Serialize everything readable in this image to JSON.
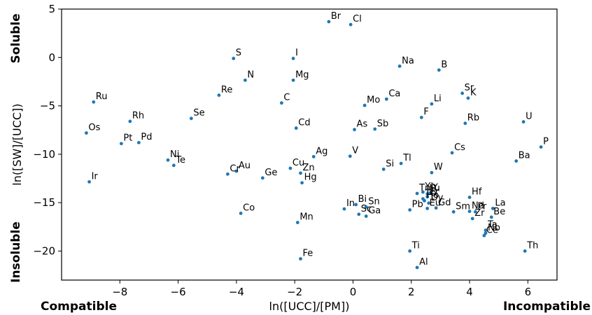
{
  "chart_data": {
    "type": "scatter",
    "xlabel": "ln([UCC]/[PM])",
    "ylabel": "ln([SW]/[UCC])",
    "xlim": [
      -10.0,
      7.0
    ],
    "ylim": [
      -23.0,
      5.0
    ],
    "xticks": [
      -8,
      -6,
      -4,
      -2,
      0,
      2,
      4,
      6
    ],
    "yticks": [
      5,
      0,
      -5,
      -10,
      -15,
      -20
    ],
    "grid": false,
    "marker_color": "#1f77b4",
    "annotations": {
      "soluble": "Soluble",
      "insoluble": "Insoluble",
      "compatible": "Compatible",
      "incompatible": "Incompatible"
    },
    "points": [
      {
        "label": "Br",
        "x": -0.83,
        "y": 3.7
      },
      {
        "label": "Cl",
        "x": -0.08,
        "y": 3.4
      },
      {
        "label": "S",
        "x": -4.1,
        "y": -0.1
      },
      {
        "label": "I",
        "x": -2.05,
        "y": -0.1
      },
      {
        "label": "Na",
        "x": 1.6,
        "y": -0.9
      },
      {
        "label": "B",
        "x": 2.95,
        "y": -1.3
      },
      {
        "label": "N",
        "x": -3.7,
        "y": -2.35
      },
      {
        "label": "Mg",
        "x": -2.05,
        "y": -2.35
      },
      {
        "label": "Re",
        "x": -4.6,
        "y": -3.9
      },
      {
        "label": "Sr",
        "x": 3.75,
        "y": -3.7
      },
      {
        "label": "K",
        "x": 3.95,
        "y": -4.2
      },
      {
        "label": "Ru",
        "x": -8.9,
        "y": -4.6
      },
      {
        "label": "C",
        "x": -2.45,
        "y": -4.7
      },
      {
        "label": "Ca",
        "x": 1.15,
        "y": -4.3
      },
      {
        "label": "Mo",
        "x": 0.4,
        "y": -4.95
      },
      {
        "label": "Li",
        "x": 2.7,
        "y": -4.8
      },
      {
        "label": "Se",
        "x": -5.55,
        "y": -6.3
      },
      {
        "label": "F",
        "x": 2.35,
        "y": -6.2
      },
      {
        "label": "Rh",
        "x": -7.65,
        "y": -6.6
      },
      {
        "label": "Rb",
        "x": 3.85,
        "y": -6.8
      },
      {
        "label": "U",
        "x": 5.85,
        "y": -6.65
      },
      {
        "label": "Cd",
        "x": -1.95,
        "y": -7.3
      },
      {
        "label": "As",
        "x": 0.05,
        "y": -7.45
      },
      {
        "label": "Sb",
        "x": 0.75,
        "y": -7.4
      },
      {
        "label": "Os",
        "x": -9.15,
        "y": -7.8
      },
      {
        "label": "Pt",
        "x": -7.95,
        "y": -8.9
      },
      {
        "label": "Pd",
        "x": -7.35,
        "y": -8.8
      },
      {
        "label": "P",
        "x": 6.45,
        "y": -9.25
      },
      {
        "label": "Cs",
        "x": 3.4,
        "y": -9.85
      },
      {
        "label": "Ag",
        "x": -1.35,
        "y": -10.25
      },
      {
        "label": "V",
        "x": -0.1,
        "y": -10.2
      },
      {
        "label": "Ni",
        "x": -6.35,
        "y": -10.6
      },
      {
        "label": "Te",
        "x": -6.15,
        "y": -11.15
      },
      {
        "label": "Ba",
        "x": 5.6,
        "y": -10.7
      },
      {
        "label": "Tl",
        "x": 1.65,
        "y": -10.95
      },
      {
        "label": "Cu",
        "x": -2.15,
        "y": -11.45
      },
      {
        "label": "Au",
        "x": -4.0,
        "y": -11.75
      },
      {
        "label": "Si",
        "x": 1.05,
        "y": -11.55
      },
      {
        "label": "Zn",
        "x": -1.8,
        "y": -11.95
      },
      {
        "label": "W",
        "x": 2.7,
        "y": -11.9
      },
      {
        "label": "Cr",
        "x": -4.3,
        "y": -12.05
      },
      {
        "label": "Ge",
        "x": -3.1,
        "y": -12.45
      },
      {
        "label": "Ir",
        "x": -9.05,
        "y": -12.85
      },
      {
        "label": "Hg",
        "x": -1.75,
        "y": -12.95
      },
      {
        "label": "Yb",
        "x": 2.4,
        "y": -13.9
      },
      {
        "label": "Lu",
        "x": 2.55,
        "y": -14.1
      },
      {
        "label": "Y",
        "x": 2.65,
        "y": -14.0
      },
      {
        "label": "Tm",
        "x": 2.2,
        "y": -14.05
      },
      {
        "label": "Er",
        "x": 2.55,
        "y": -14.4
      },
      {
        "label": "Tb",
        "x": 2.4,
        "y": -14.6
      },
      {
        "label": "Hf",
        "x": 4.0,
        "y": -14.45
      },
      {
        "label": "Ho",
        "x": 2.45,
        "y": -14.8
      },
      {
        "label": "Dy",
        "x": 2.6,
        "y": -15.05
      },
      {
        "label": "Gd",
        "x": 2.85,
        "y": -15.55
      },
      {
        "label": "In",
        "x": -0.3,
        "y": -15.65
      },
      {
        "label": "Bi",
        "x": 0.1,
        "y": -15.2
      },
      {
        "label": "Sn",
        "x": 0.45,
        "y": -15.45
      },
      {
        "label": "Nd",
        "x": 4.0,
        "y": -15.9
      },
      {
        "label": "Pr",
        "x": 4.2,
        "y": -15.95
      },
      {
        "label": "La",
        "x": 4.8,
        "y": -15.6
      },
      {
        "label": "Pb",
        "x": 1.95,
        "y": -15.75
      },
      {
        "label": "Eu",
        "x": 2.55,
        "y": -15.6
      },
      {
        "label": "Sm",
        "x": 3.45,
        "y": -15.95
      },
      {
        "label": "Co",
        "x": -3.85,
        "y": -16.1
      },
      {
        "label": "Sc",
        "x": 0.2,
        "y": -16.2
      },
      {
        "label": "Ga",
        "x": 0.45,
        "y": -16.4
      },
      {
        "label": "Be",
        "x": 4.75,
        "y": -16.5
      },
      {
        "label": "Zr",
        "x": 4.1,
        "y": -16.65
      },
      {
        "label": "Ta",
        "x": 4.55,
        "y": -17.85
      },
      {
        "label": "Mn",
        "x": -1.9,
        "y": -17.05
      },
      {
        "label": "Nb",
        "x": 4.55,
        "y": -18.15
      },
      {
        "label": "Ce",
        "x": 4.5,
        "y": -18.4
      },
      {
        "label": "Ti",
        "x": 1.95,
        "y": -20.0
      },
      {
        "label": "Th",
        "x": 5.9,
        "y": -20.0
      },
      {
        "label": "Fe",
        "x": -1.8,
        "y": -20.8
      },
      {
        "label": "Al",
        "x": 2.2,
        "y": -21.7
      }
    ]
  }
}
